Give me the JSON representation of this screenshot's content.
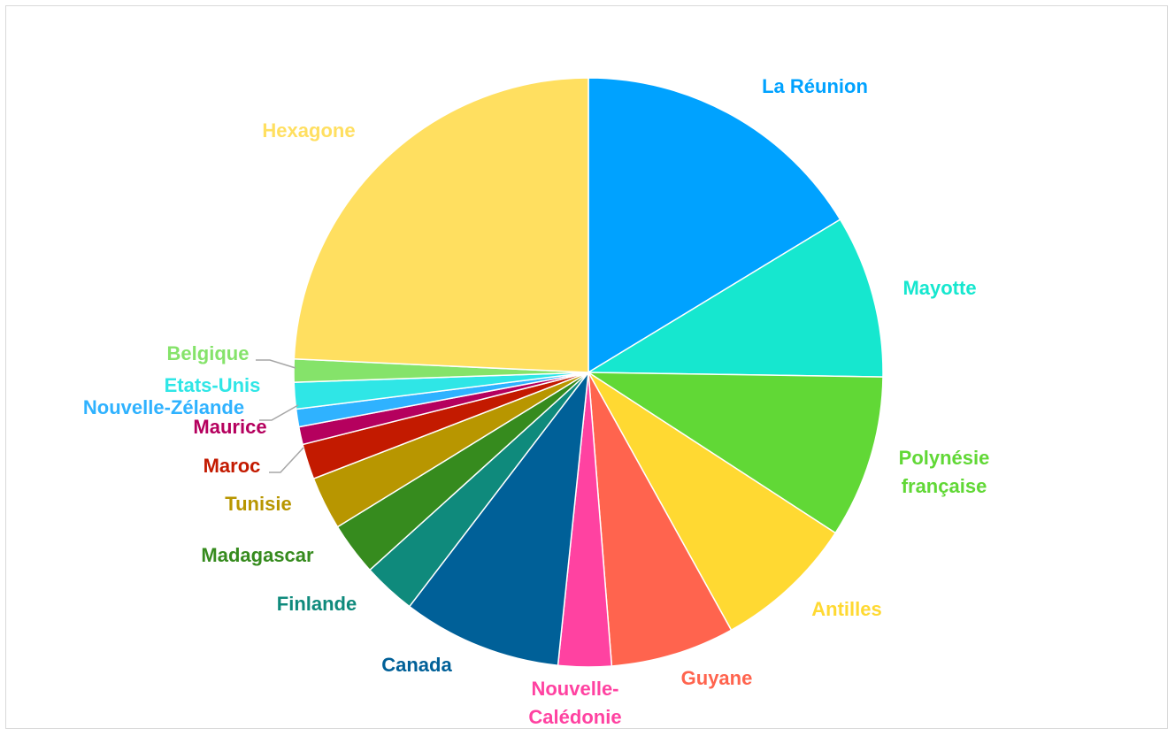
{
  "chart_data": {
    "type": "pie",
    "title": "",
    "legend": "none",
    "slices": [
      {
        "label": "La Réunion",
        "value": 16.8,
        "color": "#00A2FF"
      },
      {
        "label": "Mayotte",
        "value": 9.2,
        "color": "#16E7CF"
      },
      {
        "label": "Polynésie française",
        "value": 9.2,
        "color": "#61D836"
      },
      {
        "label": "Antilles",
        "value": 8.0,
        "color": "#FFD932"
      },
      {
        "label": "Guyane",
        "value": 7.0,
        "color": "#FF644E"
      },
      {
        "label": "Nouvelle-Calédonie",
        "value": 3.0,
        "color": "#FF42A1"
      },
      {
        "label": "Canada",
        "value": 9.0,
        "color": "#006098"
      },
      {
        "label": "Finlande",
        "value": 3.0,
        "color": "#0F8A7C"
      },
      {
        "label": "Madagascar",
        "value": 3.0,
        "color": "#368B1E"
      },
      {
        "label": "Tunisie",
        "value": 3.0,
        "color": "#B89600"
      },
      {
        "label": "Maroc",
        "value": 2.0,
        "color": "#C31A00"
      },
      {
        "label": "Maurice",
        "value": 1.0,
        "color": "#B5005E"
      },
      {
        "label": "Nouvelle-Zélande",
        "value": 1.0,
        "color": "#2FB2FF"
      },
      {
        "label": "Etats-Unis",
        "value": 1.5,
        "color": "#2FE6E6"
      },
      {
        "label": "Belgique",
        "value": 1.3,
        "color": "#85E36A"
      },
      {
        "label": "Hexagone",
        "value": 25.0,
        "color": "#FFDF60"
      }
    ]
  }
}
